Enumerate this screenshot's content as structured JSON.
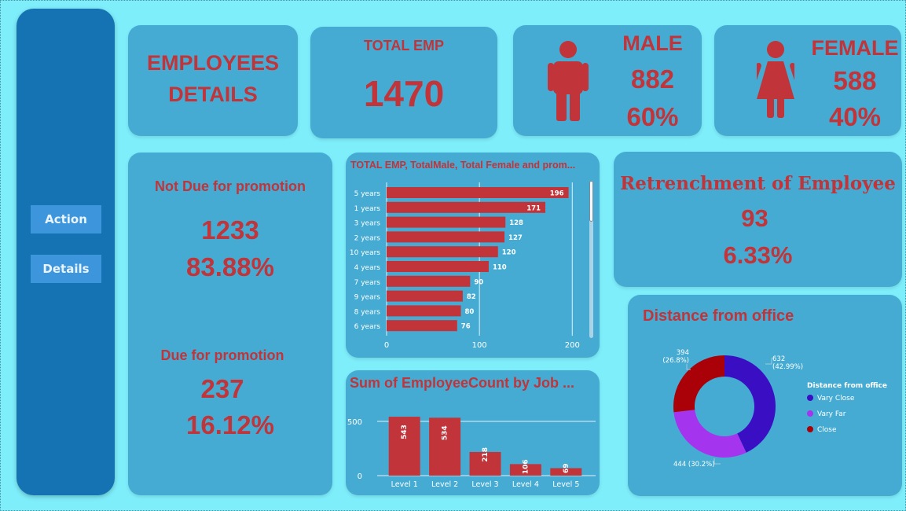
{
  "sidebar": {
    "buttons": [
      {
        "label": "Action"
      },
      {
        "label": "Details"
      }
    ]
  },
  "title_card": {
    "line1": "EMPLOYEES",
    "line2": "DETAILS"
  },
  "total_emp": {
    "label": "TOTAL EMP",
    "value": "1470"
  },
  "male": {
    "label": "MALE",
    "count": "882",
    "percent": "60%"
  },
  "female": {
    "label": "FEMALE",
    "count": "588",
    "percent": "40%"
  },
  "promotion": {
    "not_due_label": "Not Due for promotion",
    "not_due_count": "1233",
    "not_due_percent": "83.88%",
    "due_label": "Due for promotion",
    "due_count": "237",
    "due_percent": "16.12%"
  },
  "retrenchment": {
    "label": "Retrenchment of Employee",
    "count": "93",
    "percent": "6.33%"
  },
  "colors": {
    "card": "#46abd3",
    "bar": "#c0343a",
    "text_red": "#c0343a",
    "background": "#7eeefb"
  },
  "chart_data": [
    {
      "type": "bar",
      "orientation": "horizontal",
      "title": "TOTAL EMP, TotalMale, Total Female and prom...",
      "categories": [
        "5 years",
        "1 years",
        "3 years",
        "2 years",
        "10 years",
        "4 years",
        "7 years",
        "9 years",
        "8 years",
        "6 years"
      ],
      "values": [
        196,
        171,
        128,
        127,
        120,
        110,
        90,
        82,
        80,
        76
      ],
      "xticks": [
        "0",
        "100",
        "200"
      ],
      "xlim": [
        0,
        215
      ],
      "grid": true
    },
    {
      "type": "bar",
      "title": "Sum of EmployeeCount by Job ...",
      "categories": [
        "Level 1",
        "Level 2",
        "Level 3",
        "Level 4",
        "Level 5"
      ],
      "values": [
        543,
        534,
        218,
        106,
        69
      ],
      "yticks": [
        "0",
        "500"
      ],
      "ylim": [
        0,
        580
      ],
      "grid": true
    },
    {
      "type": "pie",
      "donut": true,
      "title": "Distance from office",
      "legend_title": "Distance from office",
      "legend_position": "right",
      "slices": [
        {
          "name": "Vary Close",
          "value": 632,
          "percent": "(42.99%)",
          "label_value": "632",
          "color": "#3a0fc4"
        },
        {
          "name": "Vary Far",
          "value": 444,
          "percent": "(30.2%)",
          "label_value": "444",
          "color": "#a434ee"
        },
        {
          "name": "Close",
          "value": 394,
          "percent": "(26.8%)",
          "label_value": "394",
          "color": "#aa0007"
        }
      ]
    }
  ]
}
